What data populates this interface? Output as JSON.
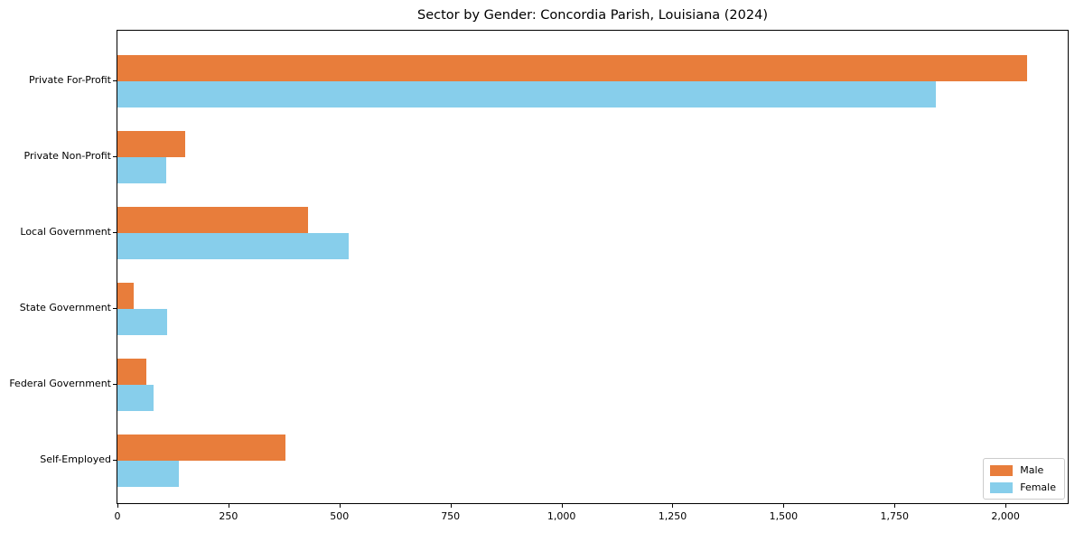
{
  "figure": {
    "background": "#ffffff",
    "frame_color": "#000000"
  },
  "chart_data": {
    "type": "bar",
    "orientation": "horizontal",
    "title": "Sector by Gender: Concordia Parish, Louisiana (2024)",
    "categories": [
      "Private For-Profit",
      "Private Non-Profit",
      "Local Government",
      "State Government",
      "Federal Government",
      "Self-Employed"
    ],
    "series": [
      {
        "name": "Male",
        "color": "#e87d3b",
        "values": [
          2049,
          153,
          429,
          37,
          66,
          378
        ]
      },
      {
        "name": "Female",
        "color": "#87ceeb",
        "values": [
          1843,
          109,
          521,
          112,
          81,
          138
        ]
      }
    ],
    "xlabel": "",
    "ylabel": "",
    "xlim": [
      0,
      2140
    ],
    "xticks": [
      0,
      250,
      500,
      750,
      1000,
      1250,
      1500,
      1750,
      2000
    ],
    "xtick_labels": [
      "0",
      "250",
      "500",
      "750",
      "1,000",
      "1,250",
      "1,500",
      "1,750",
      "2,000"
    ],
    "grid": false,
    "legend": {
      "position": "lower-right",
      "entries": [
        "Male",
        "Female"
      ]
    }
  }
}
